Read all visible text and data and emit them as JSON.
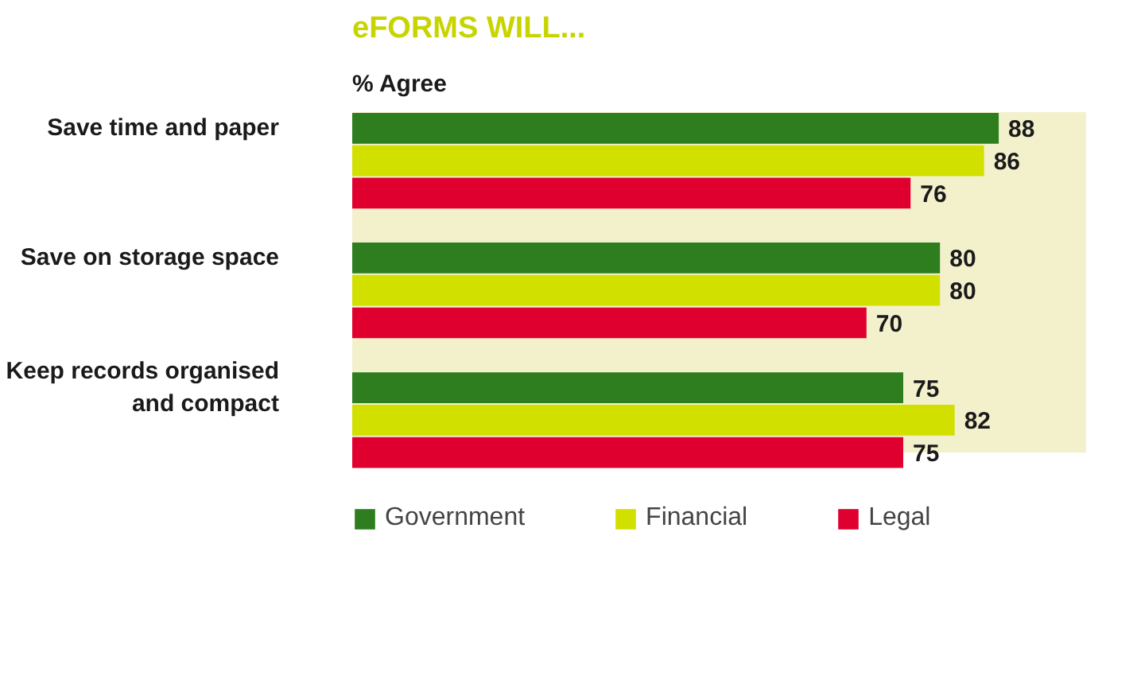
{
  "chart_data": {
    "type": "bar",
    "orientation": "horizontal",
    "title": "eFORMS WILL...",
    "subtitle": "% Agree",
    "categories": [
      "Save time and paper",
      "Save on storage space",
      "Keep records organised\nand compact"
    ],
    "series": [
      {
        "name": "Government",
        "color": "#2e7d1f",
        "values": [
          88,
          80,
          75
        ]
      },
      {
        "name": "Financial",
        "color": "#d2e000",
        "values": [
          86,
          80,
          82
        ]
      },
      {
        "name": "Legal",
        "color": "#e00030",
        "values": [
          76,
          70,
          75
        ]
      }
    ],
    "xlim": [
      0,
      100
    ],
    "tick_labels": "y",
    "data_labels": true,
    "legend": "bottom",
    "bands": [
      {
        "axis": "x",
        "from": 0,
        "to": 100,
        "color": "#f3f1cc"
      }
    ]
  }
}
